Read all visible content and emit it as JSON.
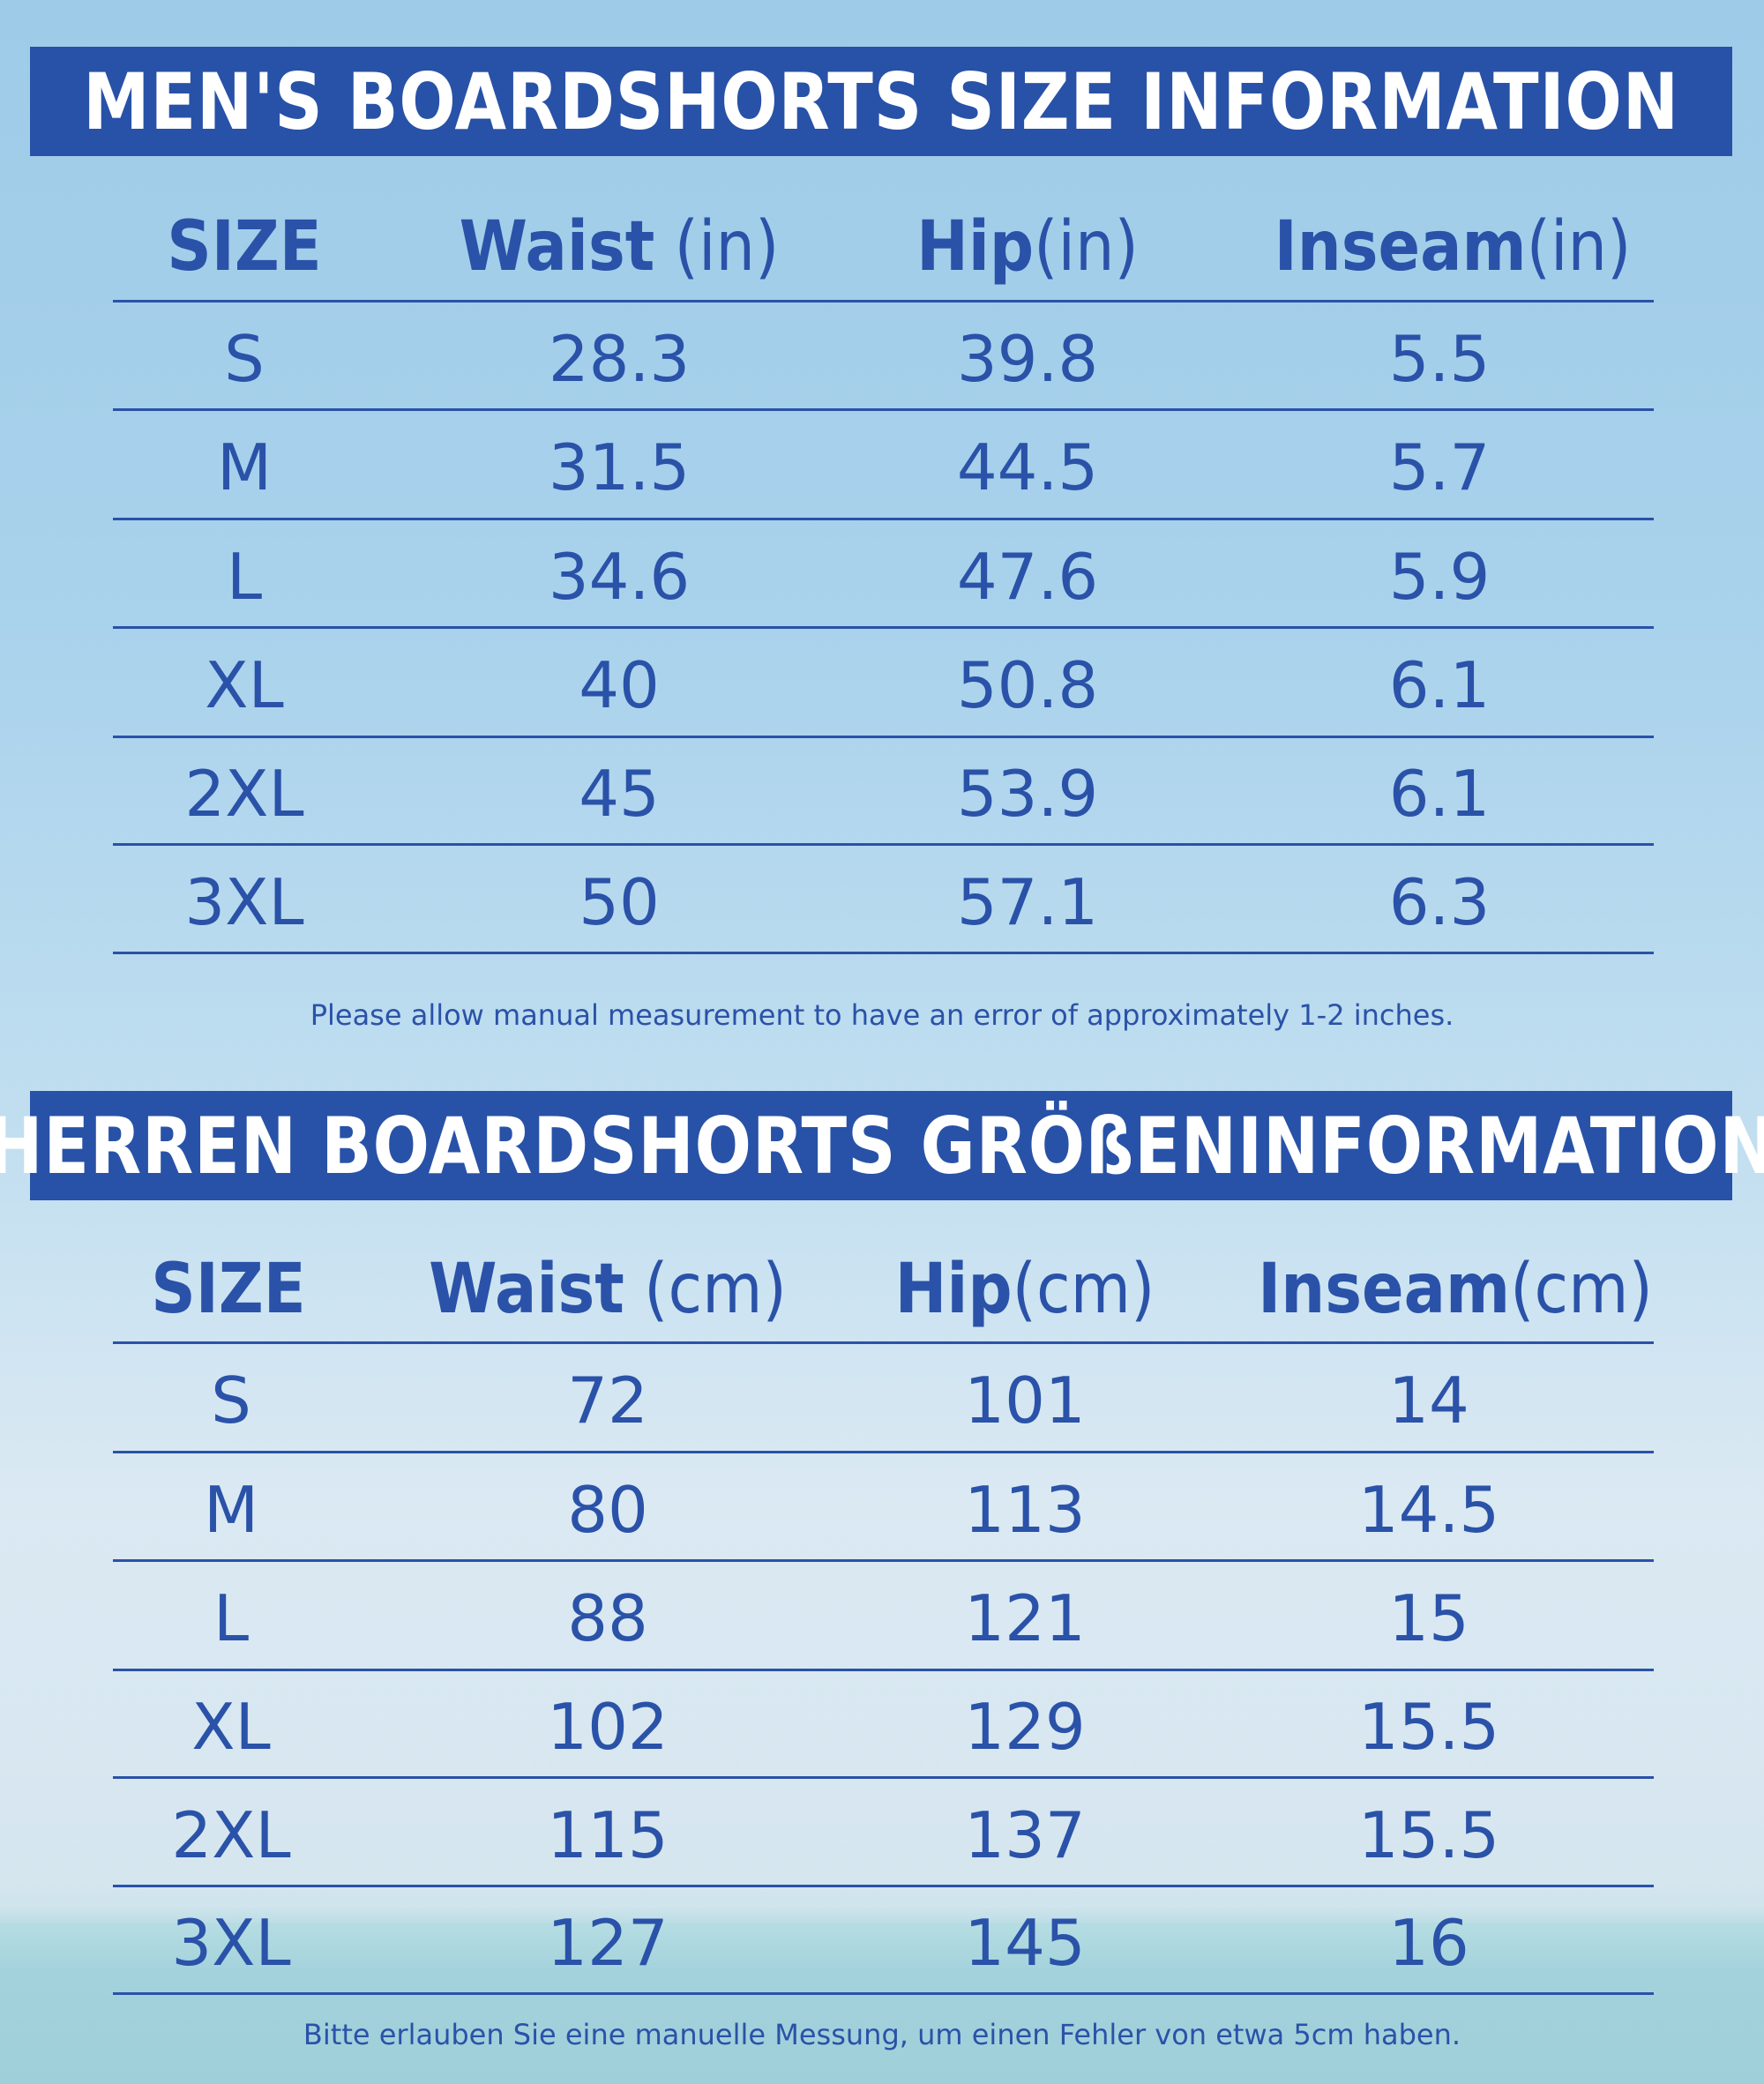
{
  "tables": [
    {
      "title": "MEN'S BOARDSHORTS SIZE INFORMATION",
      "headers": [
        {
          "bold": "SIZE",
          "unit": ""
        },
        {
          "bold": "Waist",
          "unit": " (in)"
        },
        {
          "bold": "Hip",
          "unit": "(in)"
        },
        {
          "bold": "Inseam",
          "unit": "(in)"
        }
      ],
      "rows": [
        [
          "S",
          "28.3",
          "39.8",
          "5.5"
        ],
        [
          "M",
          "31.5",
          "44.5",
          "5.7"
        ],
        [
          "L",
          "34.6",
          "47.6",
          "5.9"
        ],
        [
          "XL",
          "40",
          "50.8",
          "6.1"
        ],
        [
          "2XL",
          "45",
          "53.9",
          "6.1"
        ],
        [
          "3XL",
          "50",
          "57.1",
          "6.3"
        ]
      ],
      "note": "Please allow manual measurement to have an error of approximately 1-2 inches."
    },
    {
      "title": "HERREN BOARDSHORTS GRÖßENINFORMATION",
      "headers": [
        {
          "bold": "SIZE",
          "unit": ""
        },
        {
          "bold": "Waist",
          "unit": " (cm)"
        },
        {
          "bold": "Hip",
          "unit": "(cm)"
        },
        {
          "bold": "Inseam",
          "unit": "(cm)"
        }
      ],
      "rows": [
        [
          "S",
          "72",
          "101",
          "14"
        ],
        [
          "M",
          "80",
          "113",
          "14.5"
        ],
        [
          "L",
          "88",
          "121",
          "15"
        ],
        [
          "XL",
          "102",
          "129",
          "15.5"
        ],
        [
          "2XL",
          "115",
          "137",
          "15.5"
        ],
        [
          "3XL",
          "127",
          "145",
          "16"
        ]
      ],
      "note": "Bitte erlauben Sie eine manuelle Messung, um einen Fehler von etwa 5cm haben."
    }
  ],
  "colors": {
    "banner": "#2852a7",
    "text": "#2a52a8",
    "banner_text": "#ffffff"
  }
}
